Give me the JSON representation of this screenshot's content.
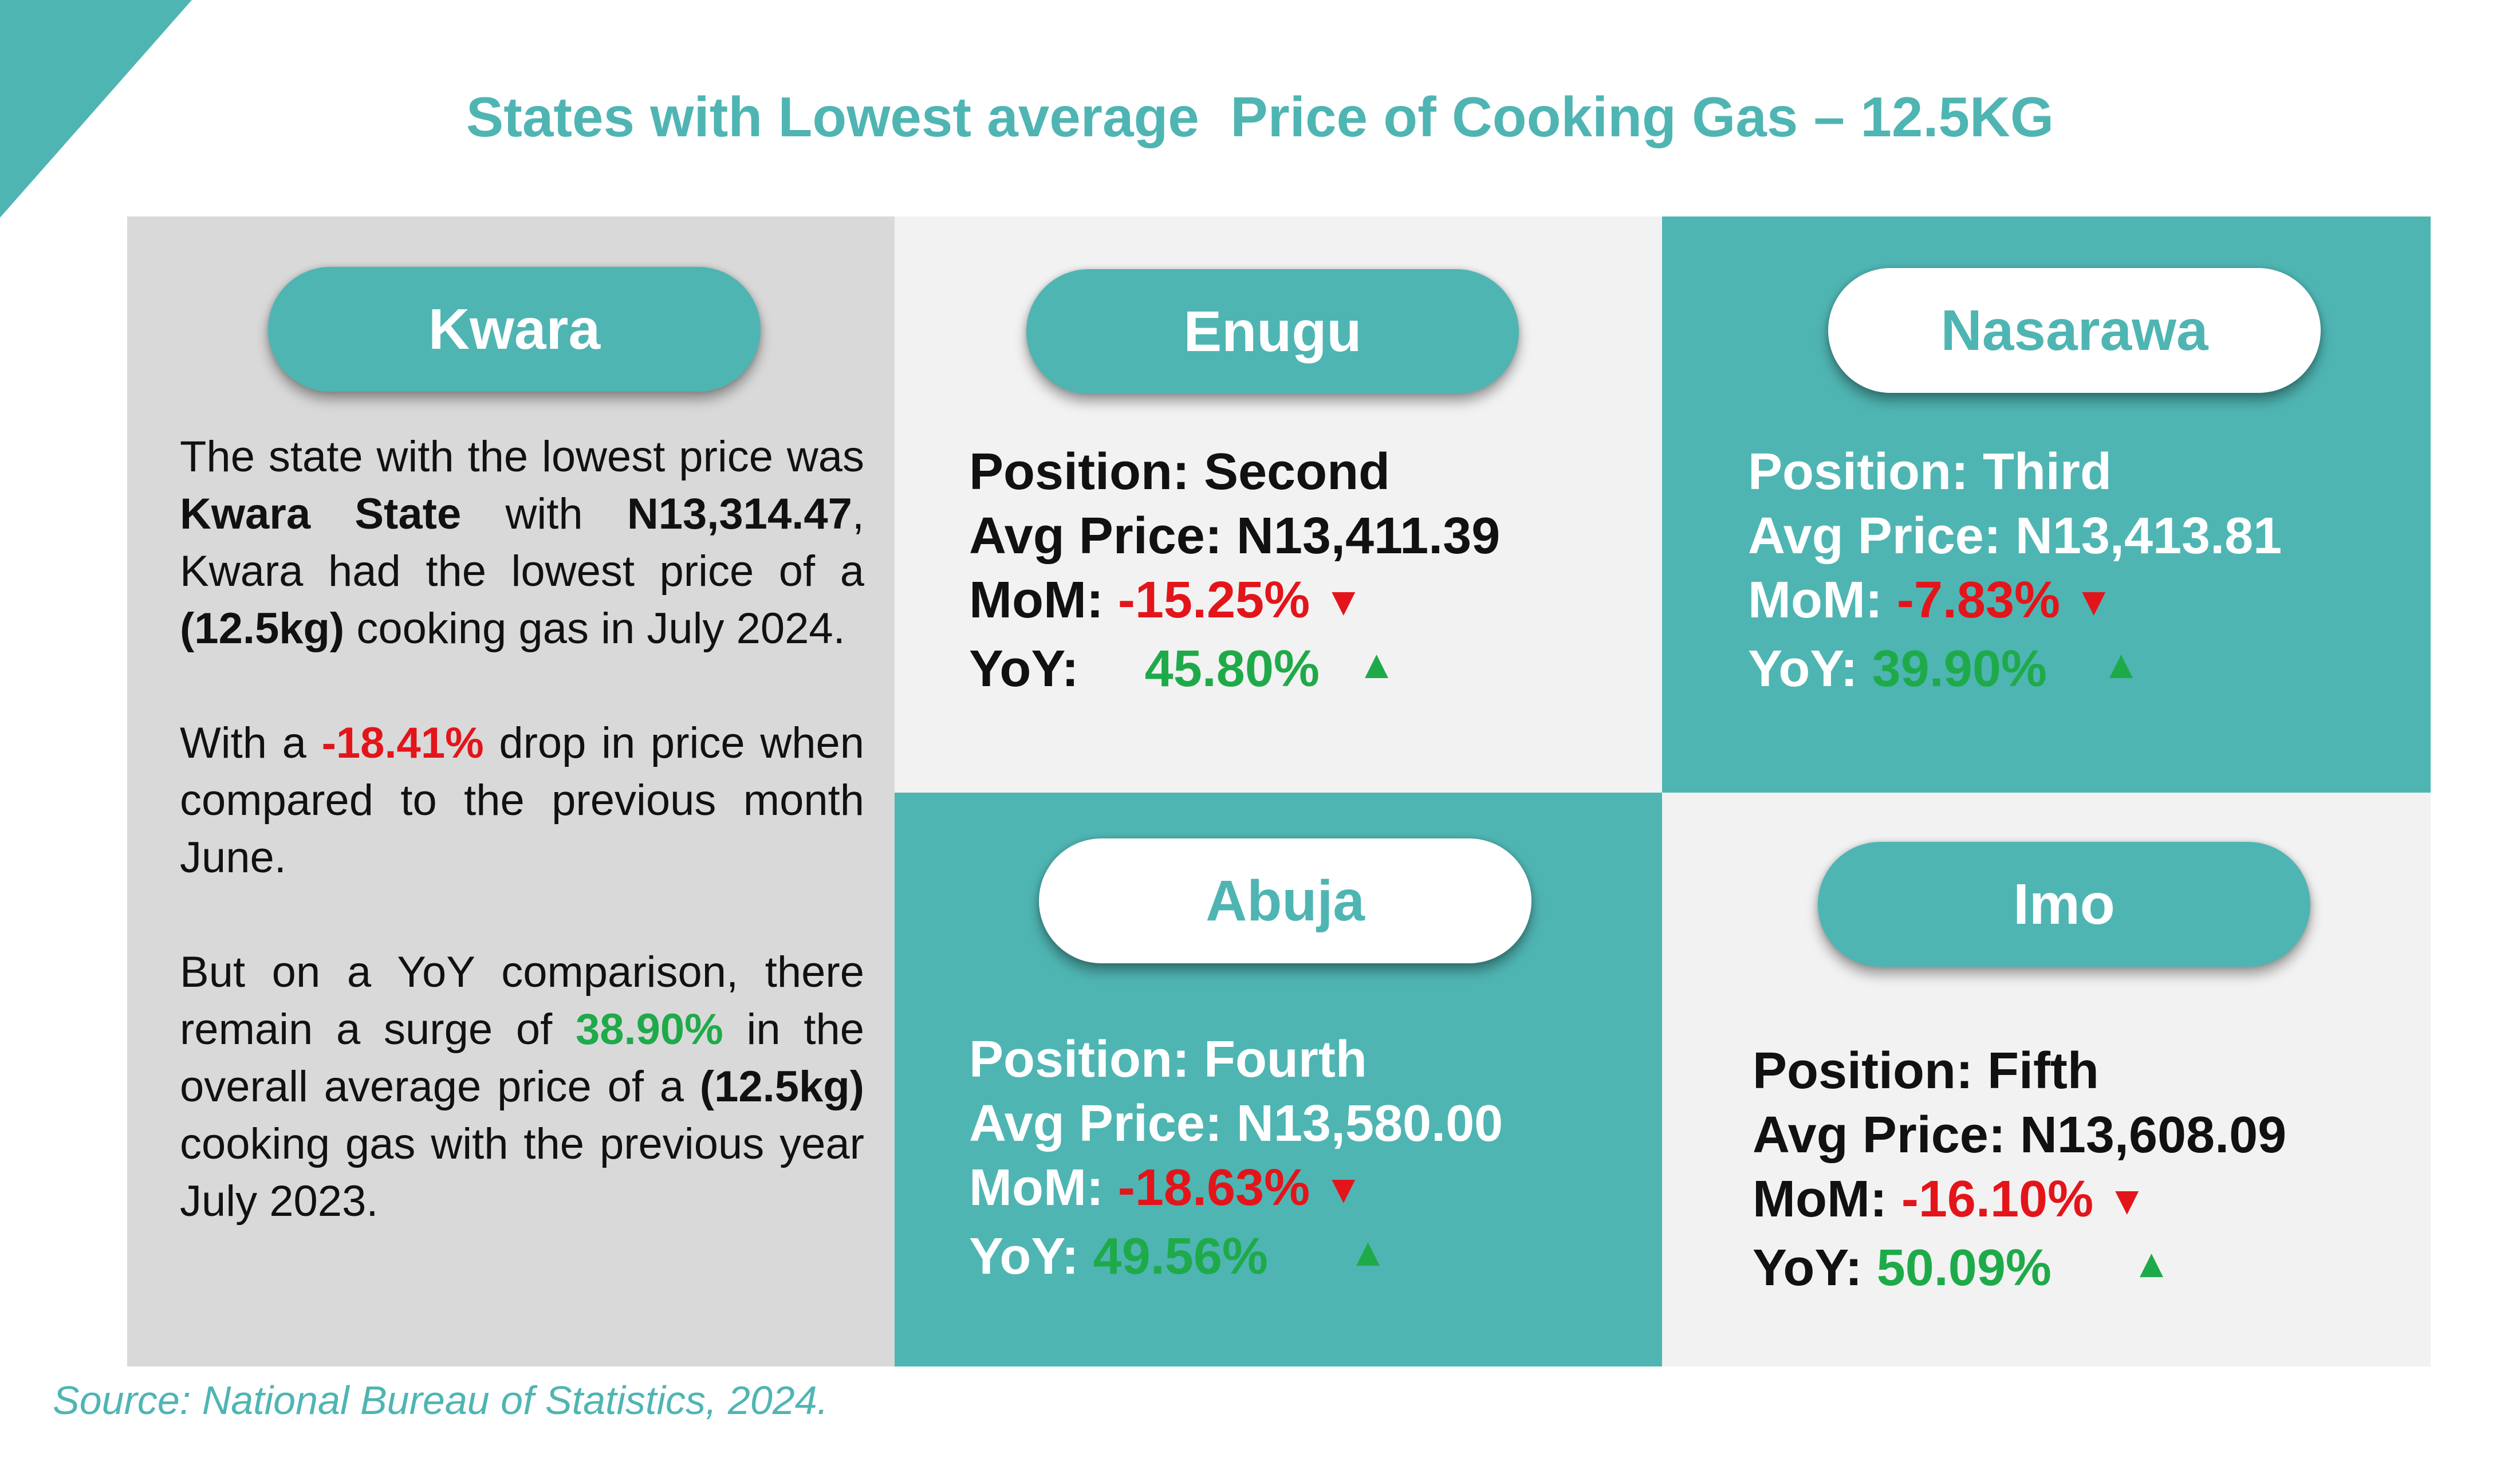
{
  "title": "States with Lowest average  Price of Cooking Gas – 12.5KG",
  "colors": {
    "teal": "#4fb5b3",
    "red": "#e3151a",
    "green": "#1faa4a",
    "grey": "#d9d9d9",
    "light_grey": "#f2f2f2"
  },
  "kwara": {
    "name": "Kwara",
    "p1": {
      "a": "The state with the lowest price was ",
      "b": "Kwara State",
      "c": " with ",
      "d": "N13,314.47",
      "e": ", Kwara had the lowest price of a ",
      "f": "(12.5kg)",
      "g": " cooking gas in July 2024."
    },
    "p2": {
      "a": "With a ",
      "b": "-18.41%",
      "c": " drop in price when compared to the previous month June."
    },
    "p3": {
      "a": "But on a YoY comparison, there remain a surge of ",
      "b": "38.90%",
      "c": " in the overall average price of a ",
      "d": "(12.5kg)",
      "e": " cooking gas with the previous year July 2023."
    }
  },
  "labels": {
    "mom": "MoM: ",
    "yoy": "YoY: "
  },
  "arrows": {
    "down": "▼",
    "up": "▲"
  },
  "states": {
    "enugu": {
      "name": "Enugu",
      "position": "Position: Second",
      "avg_price": "Avg Price: N13,411.39",
      "mom": "-15.25%",
      "yoy": "45.80%"
    },
    "nasarawa": {
      "name": "Nasarawa",
      "position": "Position: Third",
      "avg_price": "Avg Price: N13,413.81",
      "mom": "-7.83%",
      "yoy": "39.90%"
    },
    "abuja": {
      "name": "Abuja",
      "position": "Position: Fourth",
      "avg_price": "Avg Price: N13,580.00",
      "mom": "-18.63%",
      "yoy": "49.56%"
    },
    "imo": {
      "name": "Imo",
      "position": "Position: Fifth",
      "avg_price": "Avg Price: N13,608.09",
      "mom": "-16.10%",
      "yoy": "50.09%"
    }
  },
  "source": "Source: National Bureau of Statistics, 2024."
}
